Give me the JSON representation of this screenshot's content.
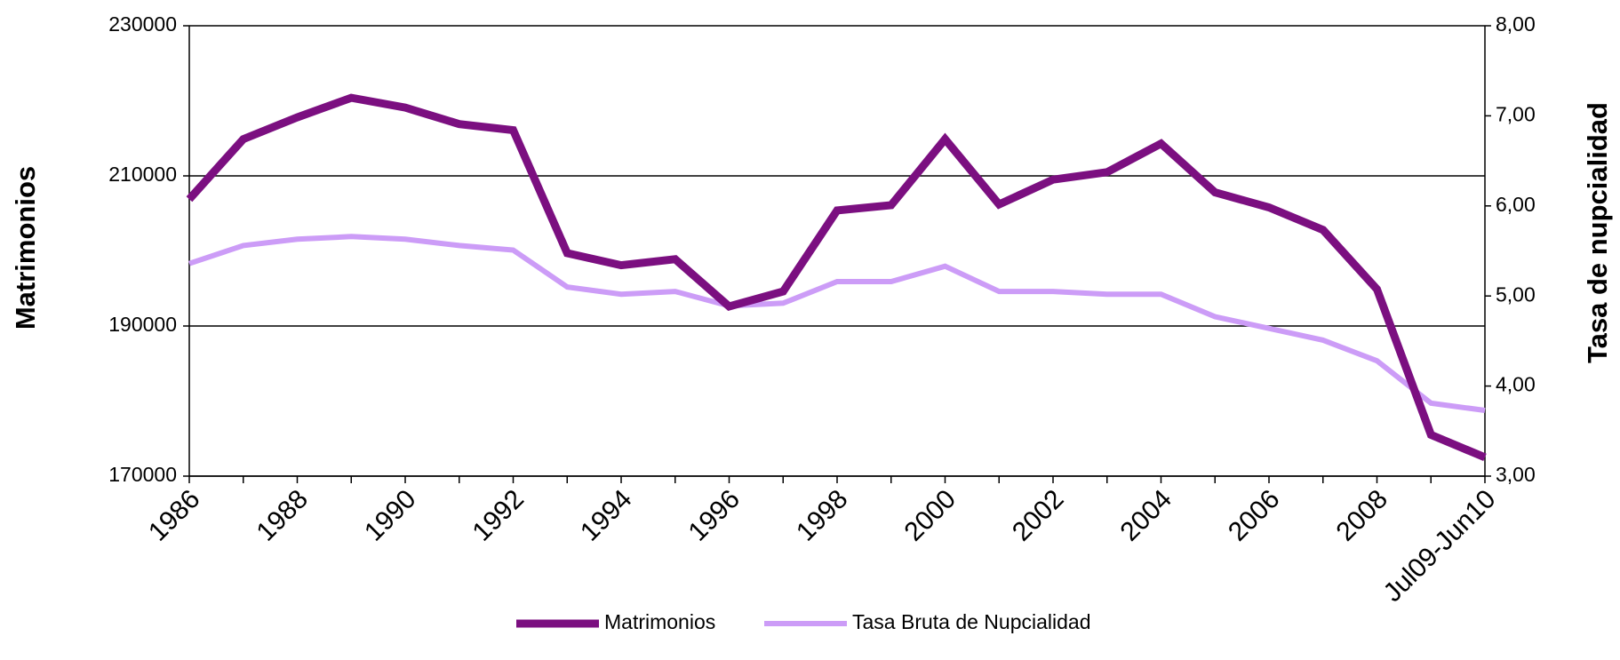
{
  "chart_data": {
    "type": "line",
    "categories": [
      "1986",
      null,
      "1988",
      null,
      "1990",
      null,
      "1992",
      null,
      "1994",
      null,
      "1996",
      null,
      "1998",
      null,
      "2000",
      null,
      "2002",
      null,
      "2004",
      null,
      "2006",
      null,
      "2008",
      null,
      "Jul09-Jun10"
    ],
    "series": [
      {
        "name": "Matrimonios",
        "color": "#7b0f80",
        "axis": "y",
        "values": [
          206900,
          214900,
          217800,
          220400,
          219100,
          216900,
          216100,
          199700,
          198100,
          198900,
          192600,
          194600,
          205400,
          206100,
          214900,
          206200,
          209500,
          210500,
          214300,
          207800,
          205800,
          202800,
          194900,
          175500,
          172500
        ]
      },
      {
        "name": "Tasa Bruta de Nupcialidad",
        "color": "#cc9cf7",
        "axis": "y2",
        "values": [
          5.36,
          5.56,
          5.63,
          5.66,
          5.63,
          5.56,
          5.51,
          5.1,
          5.02,
          5.05,
          4.89,
          4.92,
          5.16,
          5.16,
          5.33,
          5.05,
          5.05,
          5.02,
          5.02,
          4.77,
          4.64,
          4.51,
          4.28,
          3.81,
          3.73
        ]
      }
    ],
    "ylabel": "Matrimonios",
    "y2label": "Tasa de nupcialidad",
    "ylim": [
      170000,
      230000
    ],
    "yticks": [
      170000,
      190000,
      210000,
      230000
    ],
    "y2lim": [
      3,
      8
    ],
    "y2ticks": [
      {
        "value": 3,
        "label": "3,00"
      },
      {
        "value": 4,
        "label": "4,00"
      },
      {
        "value": 5,
        "label": "5,00"
      },
      {
        "value": 6,
        "label": "6,00"
      },
      {
        "value": 7,
        "label": "7,00"
      },
      {
        "value": 8,
        "label": "8,00"
      }
    ],
    "grid": true,
    "legend": "bottom"
  }
}
